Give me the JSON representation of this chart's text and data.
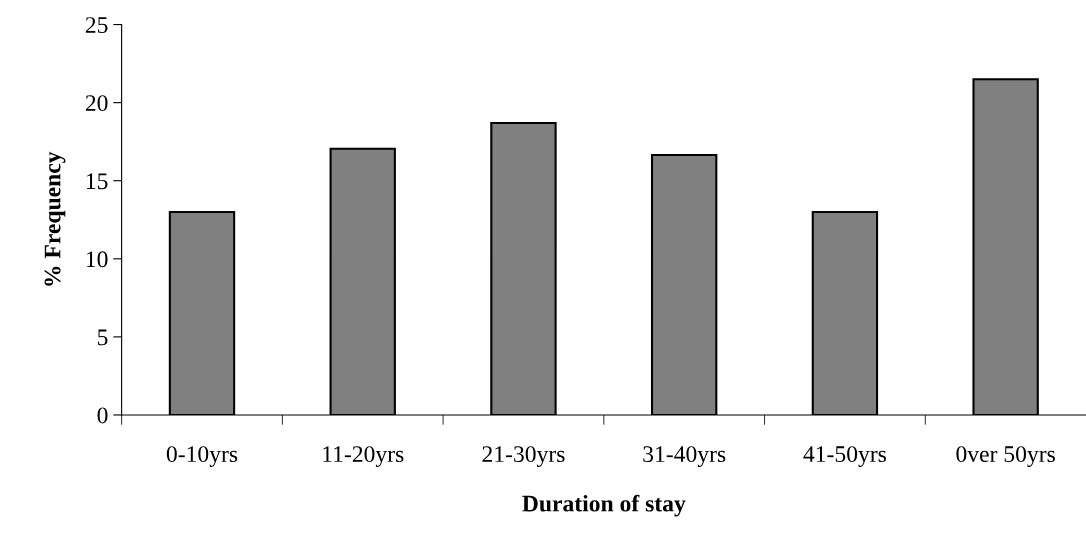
{
  "chart_data": {
    "type": "bar",
    "xlabel": "Duration of stay",
    "ylabel": "% Frequency",
    "categories": [
      "0-10yrs",
      "11-20yrs",
      "21-30yrs",
      "31-40yrs",
      "41-50yrs",
      "0ver 50yrs"
    ],
    "values": [
      13.0,
      17.05,
      18.7,
      16.65,
      13.0,
      21.5
    ],
    "color": "#808080",
    "ylim": [
      0,
      25
    ],
    "yticks": [
      0,
      5,
      10,
      15,
      20,
      25
    ],
    "grid": false,
    "legend": false
  }
}
